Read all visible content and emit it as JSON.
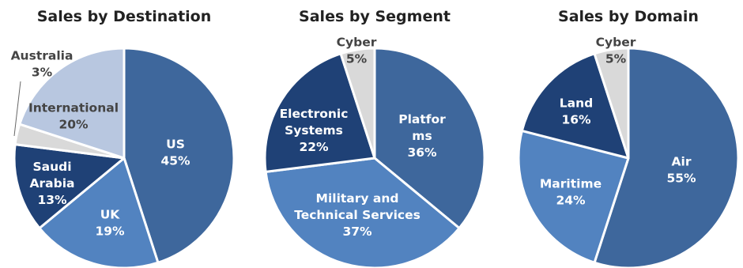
{
  "chart_data": [
    {
      "type": "pie",
      "title": "Sales by Destination",
      "slices": [
        {
          "label": "US",
          "value": 45,
          "value_label": "45%",
          "color": "#3e679c",
          "text_color": "#ffffff"
        },
        {
          "label": "UK",
          "value": 19,
          "value_label": "19%",
          "color": "#5283c0",
          "text_color": "#ffffff"
        },
        {
          "label": "Saudi Arabia",
          "label_lines": [
            "Saudi",
            "Arabia"
          ],
          "value": 13,
          "value_label": "13%",
          "color": "#1f4176",
          "text_color": "#ffffff"
        },
        {
          "label": "Australia",
          "value": 3,
          "value_label": "3%",
          "color": "#d9d9d9",
          "text_color": "#444444"
        },
        {
          "label": "International",
          "value": 20,
          "value_label": "20%",
          "color": "#b8c7e0",
          "text_color": "#444444"
        }
      ]
    },
    {
      "type": "pie",
      "title": "Sales by Segment",
      "slices": [
        {
          "label": "Platforms",
          "label_lines": [
            "Platfor",
            "ms"
          ],
          "value": 36,
          "value_label": "36%",
          "color": "#3e679c",
          "text_color": "#ffffff"
        },
        {
          "label": "Military and Technical Services",
          "label_lines": [
            "Military and",
            "Technical Services"
          ],
          "value": 37,
          "value_label": "37%",
          "color": "#5283c0",
          "text_color": "#ffffff"
        },
        {
          "label": "Electronic Systems",
          "label_lines": [
            "Electronic",
            "Systems"
          ],
          "value": 22,
          "value_label": "22%",
          "color": "#1f4176",
          "text_color": "#ffffff"
        },
        {
          "label": "Cyber",
          "value": 5,
          "value_label": "5%",
          "color": "#d9d9d9",
          "text_color": "#444444"
        }
      ]
    },
    {
      "type": "pie",
      "title": "Sales by Domain",
      "slices": [
        {
          "label": "Air",
          "value": 55,
          "value_label": "55%",
          "color": "#3e679c",
          "text_color": "#ffffff"
        },
        {
          "label": "Maritime",
          "value": 24,
          "value_label": "24%",
          "color": "#5283c0",
          "text_color": "#ffffff"
        },
        {
          "label": "Land",
          "value": 16,
          "value_label": "16%",
          "color": "#1f4176",
          "text_color": "#ffffff"
        },
        {
          "label": "Cyber",
          "value": 5,
          "value_label": "5%",
          "color": "#d9d9d9",
          "text_color": "#444444"
        }
      ]
    }
  ]
}
